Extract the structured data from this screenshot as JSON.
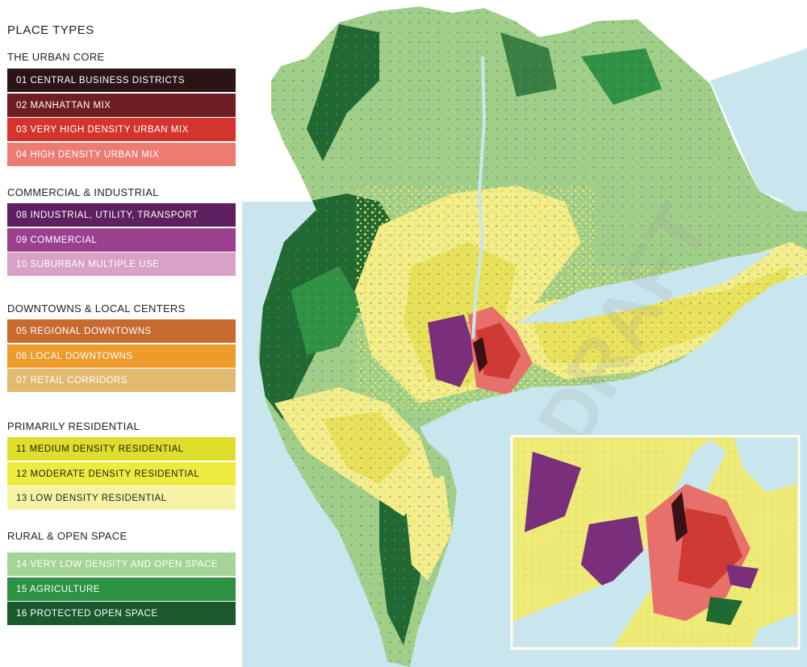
{
  "legend": {
    "title": "PLACE TYPES",
    "groups": [
      {
        "title": "THE URBAN CORE",
        "items": [
          {
            "label": "01  CENTRAL BUSINESS DISTRICTS",
            "color": "#2a1416",
            "text": "#ffffff"
          },
          {
            "label": "02  MANHATTAN MIX",
            "color": "#6e1d22",
            "text": "#ffffff"
          },
          {
            "label": "03  VERY HIGH DENSITY URBAN MIX",
            "color": "#d3342e",
            "text": "#ffffff"
          },
          {
            "label": "04  HIGH DENSITY URBAN MIX",
            "color": "#ec7b72",
            "text": "#ffffff"
          }
        ]
      },
      {
        "title": "COMMERCIAL & INDUSTRIAL",
        "items": [
          {
            "label": "08  INDUSTRIAL, UTILITY, TRANSPORT",
            "color": "#5e2060",
            "text": "#ffffff"
          },
          {
            "label": "09  COMMERCIAL",
            "color": "#9b3f8f",
            "text": "#ffffff"
          },
          {
            "label": "10   SUBURBAN MULTIPLE USE",
            "color": "#d8a1c6",
            "text": "#ffffff"
          }
        ]
      },
      {
        "title": "DOWNTOWNS & LOCAL CENTERS",
        "items": [
          {
            "label": "05  REGIONAL DOWNTOWNS",
            "color": "#c66a30",
            "text": "#ffffff"
          },
          {
            "label": "06  LOCAL DOWNTOWNS",
            "color": "#ed9c2c",
            "text": "#ffffff"
          },
          {
            "label": "07  RETAIL CORRIDORS",
            "color": "#e3b96f",
            "text": "#ffffff"
          }
        ]
      },
      {
        "title": "PRIMARILY RESIDENTIAL",
        "items": [
          {
            "label": "11   MEDIUM DENSITY RESIDENTIAL",
            "color": "#dede2b",
            "text": "#222222"
          },
          {
            "label": "12   MODERATE DENSITY RESIDENTIAL",
            "color": "#eeeb40",
            "text": "#222222"
          },
          {
            "label": "13   LOW DENSITY RESIDENTIAL",
            "color": "#f5f3a3",
            "text": "#222222"
          }
        ]
      },
      {
        "title": "RURAL & OPEN SPACE",
        "items": [
          {
            "label": "14   VERY LOW DENSITY AND OPEN SPACE",
            "color": "#a4d497",
            "text": "#ffffff"
          },
          {
            "label": "15   AGRICULTURE",
            "color": "#2d9244",
            "text": "#ffffff"
          },
          {
            "label": "16   PROTECTED OPEN SPACE",
            "color": "#1a5a2c",
            "text": "#ffffff"
          }
        ]
      }
    ]
  },
  "map": {
    "watermark": "DRAFT",
    "colors": {
      "water": "#c9e6ef",
      "rural": "#9fd08a",
      "forest": "#1e6a32",
      "agri": "#2d9244",
      "residential": "#e6e35a",
      "low_res": "#f2ee8c",
      "urban": "#e8706a",
      "very_urban": "#cf3a35",
      "core": "#3a1214",
      "industrial": "#7a2f7c"
    }
  }
}
